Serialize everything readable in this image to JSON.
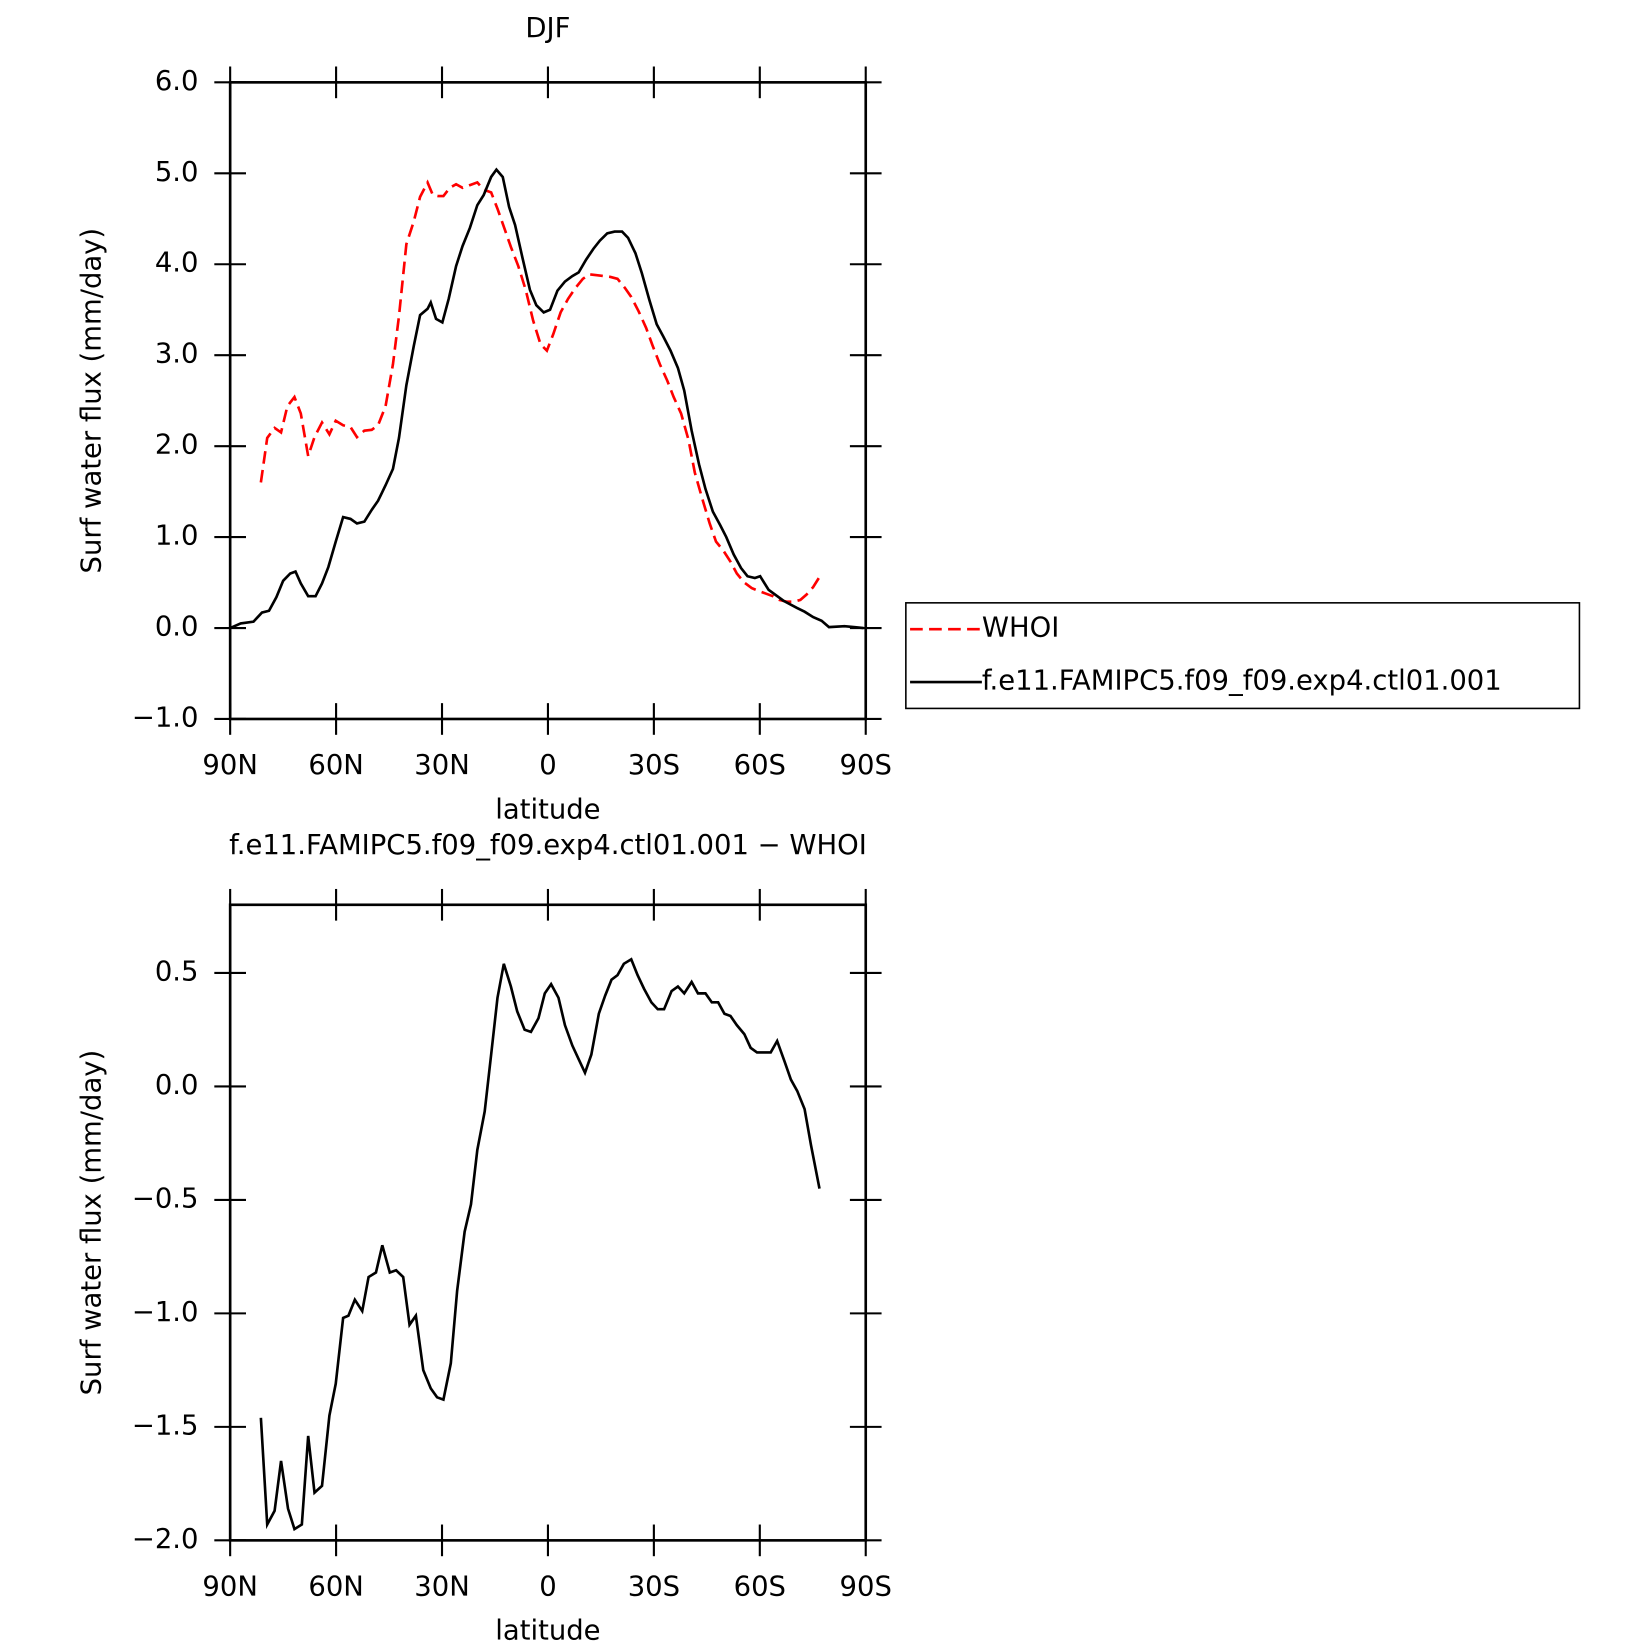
{
  "chart_data": [
    {
      "type": "line",
      "title": "DJF",
      "xlabel": "latitude",
      "ylabel": "Surf water flux (mm/day)",
      "xlim": [
        90,
        -90
      ],
      "xticks": [
        {
          "value": 90,
          "label": "90N"
        },
        {
          "value": 60,
          "label": "60N"
        },
        {
          "value": 30,
          "label": "30N"
        },
        0,
        {
          "value": -30,
          "label": "30S"
        },
        {
          "value": -60,
          "label": "60S"
        },
        {
          "value": -90,
          "label": "90S"
        }
      ],
      "ylim": [
        -1,
        6
      ],
      "yticks": [
        {
          "value": -1,
          "label": "−1.0"
        },
        {
          "value": 0,
          "label": "0.0"
        },
        {
          "value": 1,
          "label": "1.0"
        },
        {
          "value": 2,
          "label": "2.0"
        },
        {
          "value": 3,
          "label": "3.0"
        },
        {
          "value": 4,
          "label": "4.0"
        },
        {
          "value": 5,
          "label": "5.0"
        },
        {
          "value": 6,
          "label": "6.0"
        }
      ],
      "legend": "right",
      "series": [
        {
          "name": "WHOI",
          "color": "#ff0000",
          "style": "dashed",
          "x": [
            81.3,
            79.5,
            77.4,
            75.6,
            73.8,
            71.8,
            70,
            67.9,
            66.1,
            64,
            61.9,
            60.1,
            58,
            55.9,
            54.1,
            52,
            49.9,
            48.1,
            46,
            43.9,
            42.2,
            40.1,
            38,
            36.2,
            34.1,
            32.6,
            31.1,
            29.6,
            27.8,
            26,
            24.2,
            22.1,
            20,
            18.2,
            16.1,
            14.3,
            12.2,
            10.5,
            8.4,
            6.3,
            4.2,
            2.1,
            0.3,
            -1.5,
            -3.6,
            -5.7,
            -7.8,
            -9.9,
            -11.7,
            -13.8,
            -15.9,
            -17.7,
            -19.7,
            -21.8,
            -23.6,
            -25.7,
            -27.8,
            -29.6,
            -31.7,
            -33.8,
            -35.6,
            -37.7,
            -39.8,
            -41.6,
            -43.7,
            -45.8,
            -47.6,
            -49.7,
            -51.7,
            -53.5,
            -55.6,
            -57.7,
            -59.5,
            -61.6,
            -63.7,
            -65.5,
            -67.6,
            -69.7,
            -71.5,
            -73.3,
            -75.1,
            -77.2
          ],
          "values": [
            1.6,
            2.09,
            2.2,
            2.15,
            2.44,
            2.54,
            2.36,
            1.89,
            2.1,
            2.26,
            2.13,
            2.28,
            2.23,
            2.21,
            2.1,
            2.17,
            2.18,
            2.23,
            2.44,
            2.9,
            3.43,
            4.22,
            4.47,
            4.74,
            4.9,
            4.76,
            4.75,
            4.75,
            4.84,
            4.88,
            4.84,
            4.87,
            4.9,
            4.82,
            4.79,
            4.61,
            4.38,
            4.19,
            3.98,
            3.72,
            3.38,
            3.12,
            3.05,
            3.23,
            3.47,
            3.62,
            3.74,
            3.84,
            3.89,
            3.88,
            3.87,
            3.86,
            3.84,
            3.74,
            3.64,
            3.48,
            3.3,
            3.11,
            2.9,
            2.72,
            2.54,
            2.36,
            2.07,
            1.71,
            1.42,
            1.15,
            0.95,
            0.85,
            0.73,
            0.6,
            0.5,
            0.44,
            0.41,
            0.38,
            0.35,
            0.31,
            0.29,
            0.29,
            0.31,
            0.37,
            0.45,
            0.58
          ]
        },
        {
          "name": "f.e11.FAMIPC5.f09_f09.exp4.ctl01.001",
          "color": "#000000",
          "style": "solid",
          "x": [
            90,
            87,
            83.4,
            81,
            79,
            76.9,
            75,
            73,
            71.5,
            70,
            67.9,
            65.8,
            64,
            62.2,
            60.1,
            58,
            55.9,
            54.1,
            52,
            49.9,
            48.1,
            46,
            43.9,
            42.2,
            40.1,
            38,
            36.2,
            34.1,
            33.2,
            31.7,
            29.9,
            28.1,
            26,
            24.2,
            22.1,
            20,
            18.2,
            16.1,
            14.6,
            12.8,
            11,
            9.3,
            7.2,
            5.1,
            3.3,
            1.2,
            -0.6,
            -2.7,
            -4.8,
            -6.9,
            -8.7,
            -10.8,
            -12.9,
            -14.7,
            -16.8,
            -18.9,
            -21,
            -22.7,
            -24.8,
            -26.6,
            -28.7,
            -30.8,
            -32.6,
            -34.7,
            -36.8,
            -38.6,
            -40.7,
            -42.8,
            -44.6,
            -46.7,
            -48.8,
            -50.5,
            -52.6,
            -54.7,
            -56.5,
            -58.6,
            -60.1,
            -62.5,
            -66.7,
            -70.6,
            -72.7,
            -75.1,
            -77.5,
            -79.6,
            -84,
            -87,
            -89.4
          ],
          "values": [
            0,
            0.05,
            0.07,
            0.17,
            0.19,
            0.34,
            0.52,
            0.6,
            0.62,
            0.49,
            0.35,
            0.35,
            0.49,
            0.67,
            0.95,
            1.22,
            1.2,
            1.15,
            1.17,
            1.3,
            1.4,
            1.57,
            1.75,
            2.09,
            2.67,
            3.1,
            3.44,
            3.51,
            3.58,
            3.4,
            3.36,
            3.62,
            3.98,
            4.2,
            4.4,
            4.65,
            4.76,
            4.96,
            5.04,
            4.96,
            4.63,
            4.43,
            4.07,
            3.72,
            3.55,
            3.47,
            3.5,
            3.71,
            3.81,
            3.87,
            3.91,
            4.05,
            4.17,
            4.26,
            4.34,
            4.36,
            4.36,
            4.29,
            4.12,
            3.9,
            3.61,
            3.34,
            3.21,
            3.05,
            2.86,
            2.61,
            2.17,
            1.8,
            1.53,
            1.28,
            1.13,
            1,
            0.81,
            0.66,
            0.57,
            0.55,
            0.57,
            0.42,
            0.3,
            0.22,
            0.18,
            0.12,
            0.08,
            0.01,
            0.02,
            0.01,
            0
          ]
        }
      ]
    },
    {
      "type": "line",
      "title": "f.e11.FAMIPC5.f09_f09.exp4.ctl01.001 − WHOI",
      "xlabel": "latitude",
      "ylabel": "Surf water flux (mm/day)",
      "xlim": [
        90,
        -90
      ],
      "xticks": [
        {
          "value": 90,
          "label": "90N"
        },
        {
          "value": 60,
          "label": "60N"
        },
        {
          "value": 30,
          "label": "30N"
        },
        0,
        {
          "value": -30,
          "label": "30S"
        },
        {
          "value": -60,
          "label": "60S"
        },
        {
          "value": -90,
          "label": "90S"
        }
      ],
      "ylim": [
        -2,
        0.8
      ],
      "yticks": [
        {
          "value": -2,
          "label": "−2.0"
        },
        {
          "value": -1.5,
          "label": "−1.5"
        },
        {
          "value": -1,
          "label": "−1.0"
        },
        {
          "value": -0.5,
          "label": "−0.5"
        },
        {
          "value": 0,
          "label": "0.0"
        },
        0.5
      ],
      "series": [
        {
          "color": "#000000",
          "style": "solid",
          "x": [
            81.3,
            79.5,
            77.4,
            75.6,
            73.6,
            71.8,
            69.7,
            67.9,
            66.1,
            64,
            61.9,
            60.1,
            58,
            56.5,
            54.7,
            52.6,
            50.8,
            48.7,
            46.9,
            44.8,
            43,
            41,
            39.2,
            37.4,
            35.3,
            33.2,
            31.4,
            29.6,
            27.5,
            25.7,
            23.6,
            21.8,
            20,
            17.9,
            16.1,
            14.3,
            12.5,
            10.5,
            8.7,
            6.6,
            4.8,
            2.7,
            0.9,
            -0.9,
            -3,
            -4.8,
            -6.9,
            -8.7,
            -10.5,
            -12.3,
            -14.4,
            -16.2,
            -18,
            -19.7,
            -21.5,
            -23.6,
            -25.4,
            -27.2,
            -29.3,
            -31.1,
            -32.9,
            -35,
            -36.8,
            -38.6,
            -40.7,
            -42.5,
            -44.6,
            -46.4,
            -48.2,
            -50,
            -51.7,
            -53.5,
            -55.6,
            -57.4,
            -59.2,
            -61,
            -63.1,
            -64.9,
            -67,
            -68.8,
            -70.6,
            -72.7,
            -74.5,
            -76.9
          ],
          "values": [
            -1.46,
            -1.93,
            -1.87,
            -1.65,
            -1.86,
            -1.95,
            -1.93,
            -1.54,
            -1.79,
            -1.76,
            -1.45,
            -1.31,
            -1.02,
            -1.01,
            -0.94,
            -0.99,
            -0.84,
            -0.82,
            -0.7,
            -0.82,
            -0.81,
            -0.84,
            -1.05,
            -1.01,
            -1.25,
            -1.33,
            -1.37,
            -1.38,
            -1.22,
            -0.9,
            -0.64,
            -0.52,
            -0.28,
            -0.11,
            0.14,
            0.39,
            0.54,
            0.44,
            0.33,
            0.25,
            0.24,
            0.3,
            0.41,
            0.45,
            0.39,
            0.27,
            0.18,
            0.12,
            0.06,
            0.14,
            0.32,
            0.4,
            0.47,
            0.49,
            0.54,
            0.56,
            0.49,
            0.43,
            0.37,
            0.34,
            0.34,
            0.42,
            0.44,
            0.41,
            0.46,
            0.41,
            0.41,
            0.37,
            0.37,
            0.32,
            0.31,
            0.27,
            0.23,
            0.17,
            0.15,
            0.15,
            0.15,
            0.2,
            0.11,
            0.03,
            -0.02,
            -0.1,
            -0.26,
            -0.45
          ]
        }
      ]
    }
  ]
}
